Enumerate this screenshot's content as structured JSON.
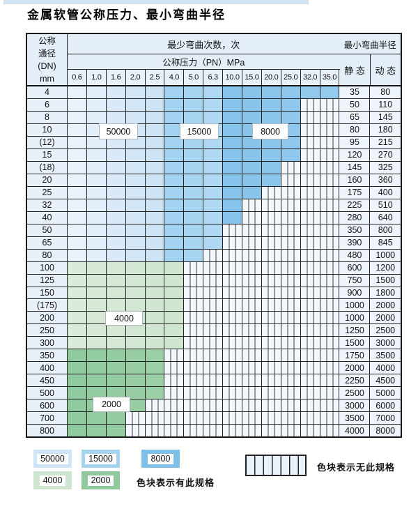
{
  "page": {
    "title": "金属软管公称压力、最小弯曲半径"
  },
  "table": {
    "header": {
      "dn_lines": [
        "公称",
        "通径",
        "(DN)",
        "mm"
      ],
      "bend_times": "最少弯曲次数，次",
      "pressure": "公称压力（PN）MPa",
      "min_radius": "最小弯曲半径",
      "static_label": "静 态",
      "dynamic_label": "动 态",
      "pressure_values": [
        "0.6",
        "1.0",
        "1.6",
        "2.0",
        "2.5",
        "4.0",
        "5.0",
        "6.3",
        "10.0",
        "15.0",
        "20.0",
        "25.0",
        "32.0",
        "35.0"
      ]
    },
    "rows": [
      {
        "dn": "4",
        "colored": 14,
        "zone": "blue",
        "static": "35",
        "dynamic": "80"
      },
      {
        "dn": "6",
        "colored": 12,
        "zone": "blue",
        "static": "50",
        "dynamic": "110"
      },
      {
        "dn": "8",
        "colored": 12,
        "zone": "blue",
        "static": "65",
        "dynamic": "145"
      },
      {
        "dn": "10",
        "colored": 12,
        "zone": "blue",
        "static": "80",
        "dynamic": "180"
      },
      {
        "dn": "(12)",
        "colored": 12,
        "zone": "blue",
        "static": "95",
        "dynamic": "215"
      },
      {
        "dn": "15",
        "colored": 12,
        "zone": "blue",
        "static": "120",
        "dynamic": "270"
      },
      {
        "dn": "(18)",
        "colored": 11,
        "zone": "blue",
        "static": "145",
        "dynamic": "325"
      },
      {
        "dn": "20",
        "colored": 11,
        "zone": "blue",
        "static": "160",
        "dynamic": "360"
      },
      {
        "dn": "25",
        "colored": 10,
        "zone": "blue",
        "static": "175",
        "dynamic": "400"
      },
      {
        "dn": "32",
        "colored": 9,
        "zone": "blue",
        "static": "225",
        "dynamic": "510"
      },
      {
        "dn": "40",
        "colored": 9,
        "zone": "blue",
        "static": "280",
        "dynamic": "640"
      },
      {
        "dn": "50",
        "colored": 8,
        "zone": "blue",
        "static": "350",
        "dynamic": "800"
      },
      {
        "dn": "65",
        "colored": 8,
        "zone": "blue",
        "static": "390",
        "dynamic": "845"
      },
      {
        "dn": "80",
        "colored": 7,
        "zone": "blue",
        "static": "480",
        "dynamic": "1000"
      },
      {
        "dn": "100",
        "colored": 6,
        "zone": "g4",
        "static": "600",
        "dynamic": "1200"
      },
      {
        "dn": "125",
        "colored": 6,
        "zone": "g4",
        "static": "750",
        "dynamic": "1500"
      },
      {
        "dn": "150",
        "colored": 6,
        "zone": "g4",
        "static": "900",
        "dynamic": "1800"
      },
      {
        "dn": "(175)",
        "colored": 6,
        "zone": "g4",
        "static": "1000",
        "dynamic": "2000"
      },
      {
        "dn": "200",
        "colored": 6,
        "zone": "g4",
        "static": "1000",
        "dynamic": "2000"
      },
      {
        "dn": "250",
        "colored": 6,
        "zone": "g4",
        "static": "1250",
        "dynamic": "2500"
      },
      {
        "dn": "300",
        "colored": 6,
        "zone": "g4",
        "static": "1500",
        "dynamic": "3000"
      },
      {
        "dn": "350",
        "colored": 5,
        "zone": "g2",
        "static": "1750",
        "dynamic": "3500"
      },
      {
        "dn": "400",
        "colored": 5,
        "zone": "g2",
        "static": "2000",
        "dynamic": "4000"
      },
      {
        "dn": "450",
        "colored": 5,
        "zone": "g2",
        "static": "2250",
        "dynamic": "4500"
      },
      {
        "dn": "500",
        "colored": 5,
        "zone": "g2",
        "static": "2500",
        "dynamic": "5000"
      },
      {
        "dn": "600",
        "colored": 4,
        "zone": "g2",
        "static": "3000",
        "dynamic": "6000"
      },
      {
        "dn": "700",
        "colored": 3,
        "zone": "g2",
        "static": "3500",
        "dynamic": "7000"
      },
      {
        "dn": "800",
        "colored": 3,
        "zone": "g2",
        "static": "4000",
        "dynamic": "8000"
      }
    ],
    "overlays": [
      {
        "label": "50000"
      },
      {
        "label": "15000"
      },
      {
        "label": "8000"
      },
      {
        "label": "4000"
      },
      {
        "label": "2000"
      }
    ]
  },
  "legend": {
    "row1": [
      {
        "label": "50000",
        "color": "#cfe4f6"
      },
      {
        "label": "15000",
        "color": "#a6d4f0"
      },
      {
        "label": "8000",
        "color": "#7fc0e9"
      }
    ],
    "row2": [
      {
        "label": "4000",
        "color": "#cfe5cf"
      },
      {
        "label": "2000",
        "color": "#8fc99c"
      }
    ],
    "has_spec_text": "色块表示有此规格",
    "no_spec_text": "色块表示无此规格"
  },
  "colors": {
    "z50": [
      "#e8f2fb",
      "#e1eef9",
      "#dae9f8",
      "#d3e6f6",
      "#cce2f5"
    ],
    "z15": [
      "#a2d2ef",
      "#a8d5f0",
      "#afd9f2"
    ],
    "z80": [
      "#86c3ea",
      "#89c5eb",
      "#8cc6ec",
      "#8fc8ec",
      "#92c9ed",
      "#95cbee"
    ],
    "g4": [
      "#d8ead9",
      "#d6e9d7",
      "#d4e8d5",
      "#d2e7d3",
      "#d0e6d1",
      "#cee5cf"
    ],
    "g2": [
      "#8fc99d",
      "#92cb9f",
      "#95cca1",
      "#98cda3",
      "#9bcfa5"
    ],
    "stripe_bg": "#f3f8fd",
    "header_bg": "#e3eef8",
    "dn_bg": "#e8f1fa",
    "value_bg": "#edf4fb",
    "top_strip": "#cfe3f2"
  }
}
